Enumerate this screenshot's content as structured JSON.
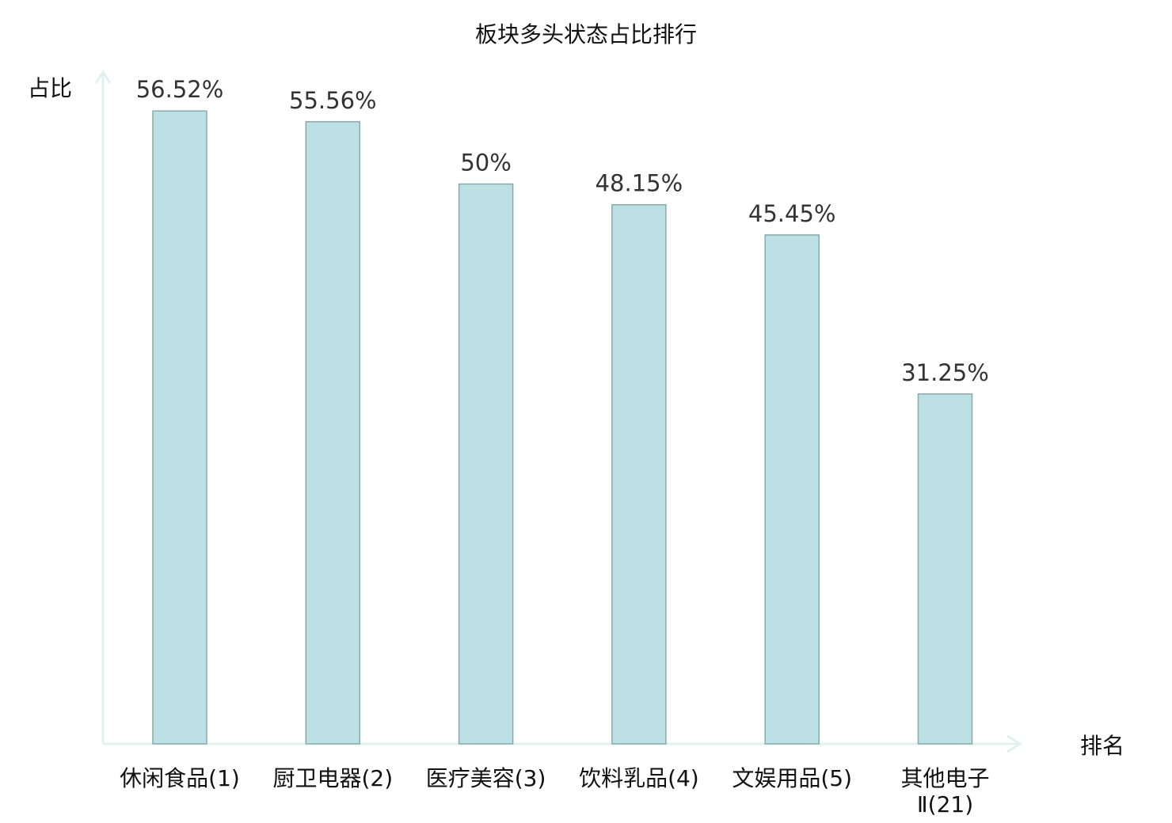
{
  "chart_data": {
    "type": "bar",
    "title": "板块多头状态占比排行",
    "xlabel": "排名",
    "ylabel": "占比",
    "categories": [
      "休闲食品(1)",
      "厨卫电器(2)",
      "医疗美容(3)",
      "饮料乳品(4)",
      "文娱用品(5)",
      "其他电子Ⅱ(21)"
    ],
    "values": [
      56.52,
      55.56,
      50,
      48.15,
      45.45,
      31.25
    ],
    "value_labels": [
      "56.52%",
      "55.56%",
      "50%",
      "48.15%",
      "45.45%",
      "31.25%"
    ],
    "highlight_index": 5,
    "ylim": [
      0,
      60
    ],
    "grid": false,
    "colors": {
      "bar_fill": "#bce0e3",
      "bar_stroke": "#8aa9ab",
      "axis": "#e0f2f0",
      "highlight_label": "#e8141a",
      "label": "#111111"
    }
  }
}
